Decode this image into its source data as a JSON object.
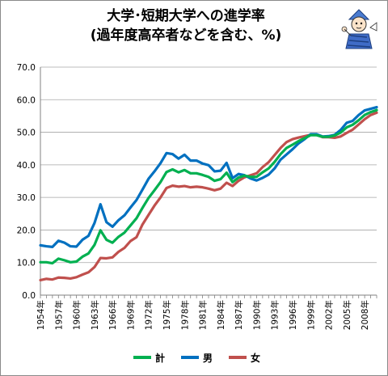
{
  "title": {
    "line1": "大学･短期大学への進学率",
    "line2": "(過年度高卒者などを含む、%)"
  },
  "chart_data": {
    "type": "line",
    "title": "大学･短期大学への進学率 (過年度高卒者などを含む、%)",
    "xlabel": "",
    "ylabel": "",
    "ylim": [
      0,
      70
    ],
    "yticks": [
      "0.0",
      "10.0",
      "20.0",
      "30.0",
      "40.0",
      "50.0",
      "60.0",
      "70.0"
    ],
    "xlim": [
      1954,
      2010
    ],
    "xtick_labels": [
      "1954年",
      "1957年",
      "1960年",
      "1963年",
      "1966年",
      "1969年",
      "1972年",
      "1975年",
      "1978年",
      "1981年",
      "1984年",
      "1987年",
      "1990年",
      "1993年",
      "1996年",
      "1999年",
      "2002年",
      "2005年",
      "2008年"
    ],
    "grid": true,
    "legend_position": "bottom",
    "x": [
      1954,
      1955,
      1956,
      1957,
      1958,
      1959,
      1960,
      1961,
      1962,
      1963,
      1964,
      1965,
      1966,
      1967,
      1968,
      1969,
      1970,
      1971,
      1972,
      1973,
      1974,
      1975,
      1976,
      1977,
      1978,
      1979,
      1980,
      1981,
      1982,
      1983,
      1984,
      1985,
      1986,
      1987,
      1988,
      1989,
      1990,
      1991,
      1992,
      1993,
      1994,
      1995,
      1996,
      1997,
      1998,
      1999,
      2000,
      2001,
      2002,
      2003,
      2004,
      2005,
      2006,
      2007,
      2008,
      2009,
      2010
    ],
    "series": [
      {
        "name": "計",
        "color": "#00b050",
        "values": [
          10.1,
          10.1,
          9.8,
          11.2,
          10.7,
          10.1,
          10.3,
          11.8,
          12.8,
          15.4,
          19.9,
          17.0,
          16.1,
          17.9,
          19.2,
          21.4,
          23.6,
          26.8,
          29.8,
          32.2,
          34.7,
          37.8,
          38.6,
          37.7,
          38.4,
          37.4,
          37.4,
          36.9,
          36.3,
          35.1,
          35.6,
          37.6,
          34.7,
          36.1,
          36.7,
          36.3,
          36.3,
          37.7,
          38.9,
          40.9,
          43.3,
          45.2,
          46.2,
          47.3,
          48.2,
          49.1,
          49.1,
          48.6,
          48.6,
          49.0,
          49.9,
          51.5,
          52.3,
          53.7,
          55.3,
          56.2,
          56.8
        ]
      },
      {
        "name": "男",
        "color": "#0070c0",
        "values": [
          15.3,
          15.0,
          14.8,
          16.7,
          16.1,
          15.0,
          14.9,
          17.0,
          18.2,
          22.1,
          27.9,
          22.4,
          21.0,
          23.0,
          24.5,
          26.9,
          29.2,
          32.4,
          35.7,
          38.0,
          40.5,
          43.6,
          43.3,
          41.9,
          43.1,
          41.3,
          41.3,
          40.4,
          39.9,
          38.0,
          38.2,
          40.6,
          35.9,
          37.2,
          36.8,
          35.8,
          35.2,
          36.0,
          37.0,
          38.9,
          41.6,
          43.2,
          44.8,
          46.6,
          47.9,
          49.4,
          49.4,
          48.7,
          48.8,
          49.2,
          50.7,
          52.9,
          53.5,
          55.3,
          56.7,
          57.2,
          57.7
        ]
      },
      {
        "name": "女",
        "color": "#c0504d",
        "values": [
          4.6,
          5.0,
          4.8,
          5.4,
          5.3,
          5.1,
          5.5,
          6.3,
          7.0,
          8.6,
          11.4,
          11.3,
          11.6,
          13.3,
          14.5,
          16.6,
          17.8,
          21.7,
          24.6,
          27.5,
          30.0,
          32.9,
          33.6,
          33.3,
          33.5,
          33.1,
          33.3,
          33.1,
          32.7,
          32.2,
          32.7,
          34.5,
          33.5,
          35.1,
          36.2,
          36.8,
          37.4,
          39.3,
          40.8,
          43.0,
          45.2,
          47.0,
          47.9,
          48.4,
          48.8,
          49.2,
          49.2,
          48.5,
          48.5,
          48.3,
          48.7,
          49.8,
          50.8,
          52.4,
          54.0,
          55.3,
          56.0
        ]
      }
    ]
  }
}
